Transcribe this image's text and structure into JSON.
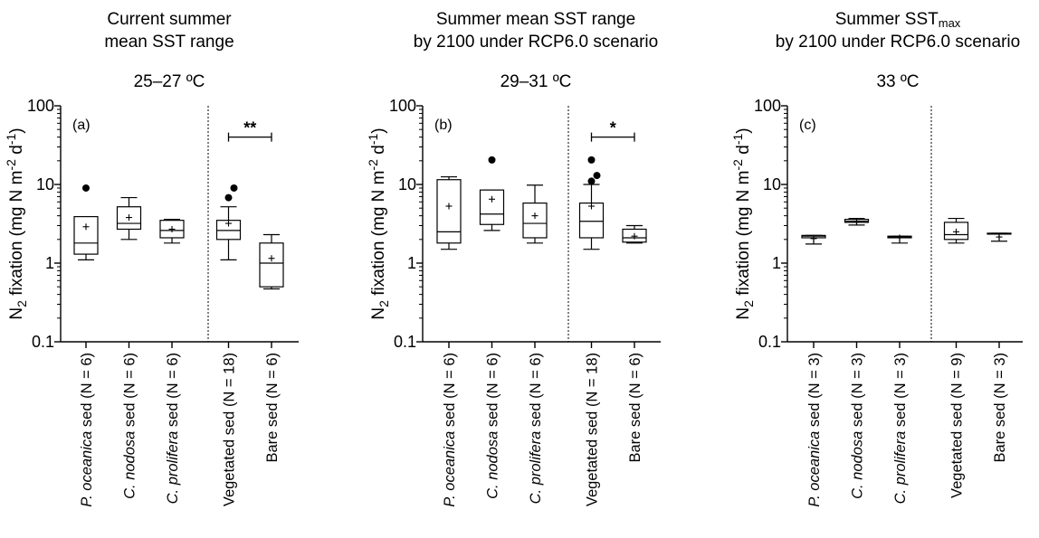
{
  "chart_data": [
    {
      "type": "box",
      "panel_label": "(a)",
      "title_lines": [
        "Current summer",
        "mean SST range"
      ],
      "title_sub": "",
      "temperature_label": "25–27 ºC",
      "ylabel_main": "N",
      "ylabel_sub": "2",
      "ylabel_rest": " fixation (mg N m",
      "ylabel_sup1": "-2",
      "ylabel_mid": " d",
      "ylabel_sup2": "-1",
      "ylabel_end": ")",
      "y_scale": "log",
      "ylim": [
        0.1,
        100
      ],
      "y_ticks": [
        "0.1",
        "1",
        "10",
        "100"
      ],
      "categories": [
        {
          "pre": "P. oceanica",
          "italic": true,
          "post": " sed (N = 6)"
        },
        {
          "pre": "C. nodosa",
          "italic": true,
          "post": " sed (N = 6)"
        },
        {
          "pre": "C. prolifera",
          "italic": true,
          "post": " sed (N = 6)"
        },
        {
          "pre": "",
          "italic": false,
          "post": "Vegetated sed (N = 18)"
        },
        {
          "pre": "",
          "italic": false,
          "post": "Bare sed (N = 6)"
        }
      ],
      "divider_after_index": 2,
      "boxes": [
        {
          "min": 1.1,
          "q1": 1.3,
          "median": 1.8,
          "q3": 3.9,
          "max": 3.9,
          "mean": 2.9,
          "outliers": [
            9.0
          ]
        },
        {
          "min": 2.0,
          "q1": 2.7,
          "median": 3.2,
          "q3": 5.2,
          "max": 6.8,
          "mean": 3.8,
          "outliers": []
        },
        {
          "min": 1.8,
          "q1": 2.1,
          "median": 2.6,
          "q3": 3.5,
          "max": 3.6,
          "mean": 2.7,
          "outliers": []
        },
        {
          "min": 1.1,
          "q1": 2.0,
          "median": 2.6,
          "q3": 3.5,
          "max": 5.2,
          "mean": 3.2,
          "outliers": [
            6.8,
            9.0
          ]
        },
        {
          "min": 0.47,
          "q1": 0.5,
          "median": 1.0,
          "q3": 1.8,
          "max": 2.3,
          "mean": 1.15,
          "outliers": []
        }
      ],
      "significance": {
        "from_index": 3,
        "to_index": 4,
        "label": "**",
        "y": 40
      }
    },
    {
      "type": "box",
      "panel_label": "(b)",
      "title_lines": [
        "Summer mean SST range",
        "by 2100 under RCP6.0 scenario"
      ],
      "title_sub": "",
      "temperature_label": "29–31 ºC",
      "ylabel_main": "N",
      "ylabel_sub": "2",
      "ylabel_rest": " fixation (mg N m",
      "ylabel_sup1": "-2",
      "ylabel_mid": " d",
      "ylabel_sup2": "-1",
      "ylabel_end": ")",
      "y_scale": "log",
      "ylim": [
        0.1,
        100
      ],
      "y_ticks": [
        "0.1",
        "1",
        "10",
        "100"
      ],
      "categories": [
        {
          "pre": "P. oceanica",
          "italic": true,
          "post": " sed (N = 6)"
        },
        {
          "pre": "C. nodosa",
          "italic": true,
          "post": " sed (N = 6)"
        },
        {
          "pre": "C. prolifera",
          "italic": true,
          "post": " sed (N = 6)"
        },
        {
          "pre": "",
          "italic": false,
          "post": "Vegetated sed (N = 18)"
        },
        {
          "pre": "",
          "italic": false,
          "post": "Bare sed (N = 6)"
        }
      ],
      "divider_after_index": 2,
      "boxes": [
        {
          "min": 1.5,
          "q1": 1.8,
          "median": 2.5,
          "q3": 11.5,
          "max": 12.5,
          "mean": 5.3,
          "outliers": []
        },
        {
          "min": 2.6,
          "q1": 3.1,
          "median": 4.2,
          "q3": 8.5,
          "max": 8.5,
          "mean": 6.5,
          "outliers": [
            20.5
          ]
        },
        {
          "min": 1.8,
          "q1": 2.1,
          "median": 3.2,
          "q3": 5.8,
          "max": 9.8,
          "mean": 4.0,
          "outliers": []
        },
        {
          "min": 1.5,
          "q1": 2.1,
          "median": 3.4,
          "q3": 5.8,
          "max": 10.0,
          "mean": 5.3,
          "outliers": [
            11.0,
            13.0,
            20.5
          ]
        },
        {
          "min": 1.8,
          "q1": 1.85,
          "median": 2.1,
          "q3": 2.7,
          "max": 3.0,
          "mean": 2.2,
          "outliers": []
        }
      ],
      "significance": {
        "from_index": 3,
        "to_index": 4,
        "label": "*",
        "y": 40
      }
    },
    {
      "type": "box",
      "panel_label": "(c)",
      "title_lines": [
        "Summer SST",
        "by 2100 under RCP6.0 scenario"
      ],
      "title_sub": "max",
      "temperature_label": "33 ºC",
      "ylabel_main": "N",
      "ylabel_sub": "2",
      "ylabel_rest": " fixation (mg N m",
      "ylabel_sup1": "-2",
      "ylabel_mid": " d",
      "ylabel_sup2": "-1",
      "ylabel_end": ")",
      "y_scale": "log",
      "ylim": [
        0.1,
        100
      ],
      "y_ticks": [
        "0.1",
        "1",
        "10",
        "100"
      ],
      "categories": [
        {
          "pre": "P. oceanica",
          "italic": true,
          "post": " sed (N = 3)"
        },
        {
          "pre": "C. nodosa",
          "italic": true,
          "post": " sed (N = 3)"
        },
        {
          "pre": "C. prolifera",
          "italic": true,
          "post": " sed (N = 3)"
        },
        {
          "pre": "",
          "italic": false,
          "post": "Vegetated sed (N = 9)"
        },
        {
          "pre": "",
          "italic": false,
          "post": "Bare sed (N = 3)"
        }
      ],
      "divider_after_index": 2,
      "boxes": [
        {
          "min": 1.75,
          "q1": 2.1,
          "median": 2.2,
          "q3": 2.25,
          "max": 2.25,
          "mean": 2.05,
          "outliers": []
        },
        {
          "min": 3.05,
          "q1": 3.3,
          "median": 3.4,
          "q3": 3.6,
          "max": 3.7,
          "mean": 3.4,
          "outliers": []
        },
        {
          "min": 1.8,
          "q1": 2.1,
          "median": 2.15,
          "q3": 2.2,
          "max": 2.2,
          "mean": 2.1,
          "outliers": []
        },
        {
          "min": 1.8,
          "q1": 2.0,
          "median": 2.3,
          "q3": 3.3,
          "max": 3.7,
          "mean": 2.5,
          "outliers": []
        },
        {
          "min": 1.9,
          "q1": 2.35,
          "median": 2.35,
          "q3": 2.4,
          "max": 2.4,
          "mean": 2.15,
          "outliers": []
        }
      ],
      "significance": null
    }
  ]
}
